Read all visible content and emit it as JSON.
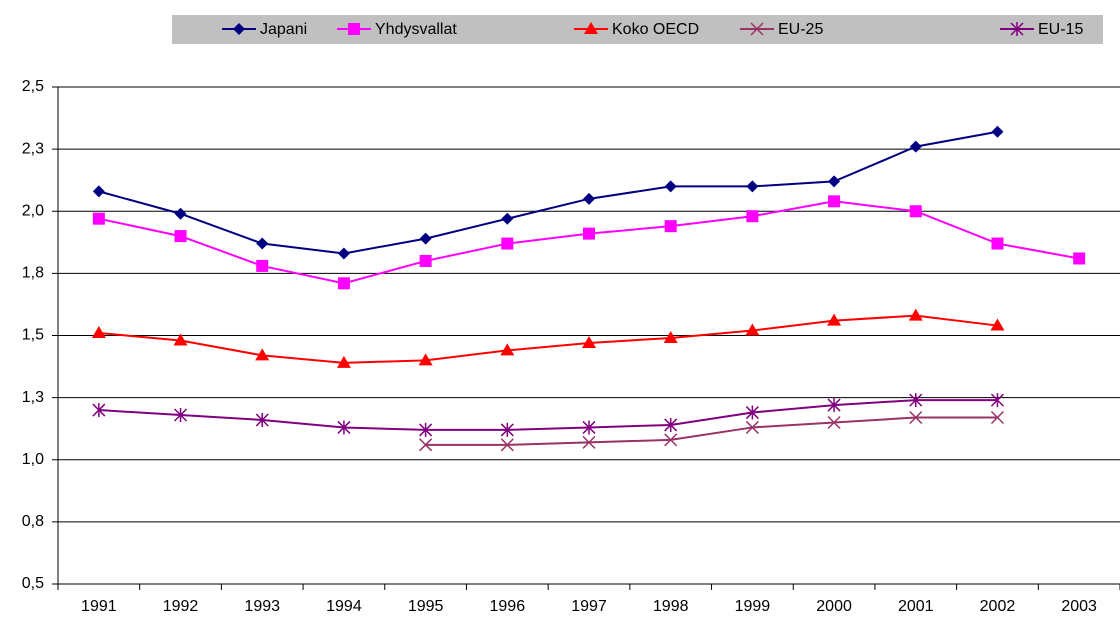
{
  "chart_data": {
    "type": "line",
    "categories": [
      "1991",
      "1992",
      "1993",
      "1994",
      "1995",
      "1996",
      "1997",
      "1998",
      "1999",
      "2000",
      "2001",
      "2002",
      "2003"
    ],
    "series": [
      {
        "name": "Japani",
        "color": "#000080",
        "marker": "diamond",
        "values": [
          2.08,
          1.99,
          1.87,
          1.83,
          1.89,
          1.97,
          2.05,
          2.1,
          2.1,
          2.12,
          2.26,
          2.32,
          null
        ]
      },
      {
        "name": "Yhdysvallat",
        "color": "#ff00ff",
        "marker": "square",
        "values": [
          1.97,
          1.9,
          1.78,
          1.71,
          1.8,
          1.87,
          1.91,
          1.94,
          1.98,
          2.04,
          2.0,
          1.87,
          1.81
        ]
      },
      {
        "name": "Koko OECD",
        "color": "#ff0000",
        "marker": "triangle",
        "values": [
          1.51,
          1.48,
          1.42,
          1.39,
          1.4,
          1.44,
          1.47,
          1.49,
          1.52,
          1.56,
          1.58,
          1.54,
          null
        ]
      },
      {
        "name": "EU-25",
        "color": "#993366",
        "marker": "x",
        "values": [
          null,
          null,
          null,
          null,
          1.06,
          1.06,
          1.07,
          1.08,
          1.13,
          1.15,
          1.17,
          1.17,
          null
        ]
      },
      {
        "name": "EU-15",
        "color": "#800080",
        "marker": "star",
        "values": [
          1.2,
          1.18,
          1.16,
          1.13,
          1.12,
          1.12,
          1.13,
          1.14,
          1.19,
          1.22,
          1.24,
          1.24,
          null
        ]
      }
    ],
    "ylim": [
      0.5,
      2.5
    ],
    "yticks": [
      {
        "value": 0.5,
        "label": "0,5"
      },
      {
        "value": 0.75,
        "label": "0,8"
      },
      {
        "value": 1.0,
        "label": "1,0"
      },
      {
        "value": 1.25,
        "label": "1,3"
      },
      {
        "value": 1.5,
        "label": "1,5"
      },
      {
        "value": 1.75,
        "label": "1,8"
      },
      {
        "value": 2.0,
        "label": "2,0"
      },
      {
        "value": 2.25,
        "label": "2,3"
      },
      {
        "value": 2.5,
        "label": "2,5"
      }
    ],
    "grid": true,
    "legend": "top"
  }
}
